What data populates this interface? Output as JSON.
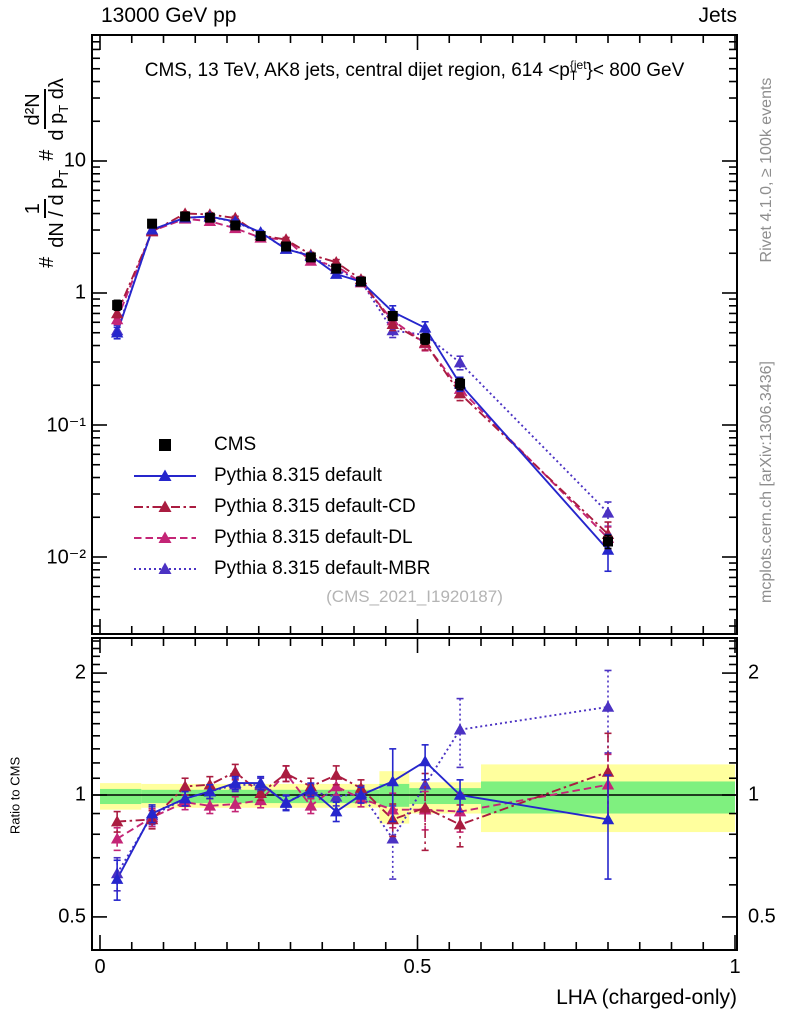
{
  "header": {
    "left": "13000 GeV pp",
    "right": "Jets"
  },
  "panel_title": {
    "prefix": "CMS, 13 TeV, AK8 jets, central dijet region, 614 <p",
    "sup": "{jet",
    "sub": "T",
    "suffix": "}< 800 GeV"
  },
  "watermark": "(CMS_2021_I1920187)",
  "side_text_top": "Rivet 4.1.0, ≥ 100k events",
  "side_text_bottom": "mcplots.cern.ch [arXiv:1306.3436]",
  "chart_data": {
    "type": "line",
    "x_axis": {
      "label": "LHA (charged-only)",
      "lim": [
        -0.0126,
        1.0031
      ],
      "major_ticks": [
        0,
        0.5,
        1
      ],
      "major_tick_labels": [
        "0",
        "0.5",
        "1"
      ],
      "minor_tick_step": 0.05
    },
    "y_axis_main": {
      "scale": "log",
      "lim": [
        0.0027,
        88
      ],
      "major_ticks": [
        0.01,
        0.1,
        1,
        10
      ],
      "major_tick_labels": [
        "10⁻²",
        "10⁻¹",
        "1",
        "10"
      ],
      "label_parts": {
        "hash1": "#",
        "frac1_num": "1",
        "frac1_den": "dN / d p",
        "frac1_den_sub": "T",
        "hash2": "#",
        "frac2_num": "d²N",
        "frac2_den": "d p",
        "frac2_den_sub": "T",
        "frac2_den_tail": " dλ"
      }
    },
    "y_axis_ratio": {
      "scale": "log",
      "lim": [
        0.42,
        2.43
      ],
      "major_ticks": [
        0.5,
        1,
        2
      ],
      "major_tick_labels": [
        "0.5",
        "1",
        "2"
      ],
      "label": "Ratio to CMS"
    },
    "x_values": [
      0.027,
      0.082,
      0.134,
      0.173,
      0.213,
      0.253,
      0.293,
      0.332,
      0.372,
      0.411,
      0.461,
      0.512,
      0.567,
      0.8
    ],
    "ratio_reference": 1,
    "series": [
      {
        "name": "cms",
        "label": "CMS",
        "color": "#000000",
        "marker": "square",
        "line_style": "none",
        "y": [
          0.81,
          3.35,
          3.8,
          3.72,
          3.25,
          2.7,
          2.25,
          1.86,
          1.53,
          1.22,
          0.67,
          0.45,
          0.205,
          0.0131
        ],
        "y_err": [
          0.07,
          0.12,
          0.12,
          0.12,
          0.11,
          0.09,
          0.08,
          0.07,
          0.06,
          0.05,
          0.05,
          0.04,
          0.02,
          0.0015
        ],
        "ratio": null,
        "ratio_err": null
      },
      {
        "name": "pythia-default",
        "label": "Pythia 8.315 default",
        "color": "#2626cc",
        "marker": "triangle",
        "line_style": "solid",
        "y": [
          0.5,
          3.02,
          3.72,
          3.79,
          3.48,
          2.88,
          2.15,
          1.91,
          1.39,
          1.22,
          0.72,
          0.545,
          0.205,
          0.0113
        ],
        "y_err": [
          0.05,
          0.12,
          0.12,
          0.12,
          0.11,
          0.09,
          0.08,
          0.07,
          0.07,
          0.06,
          0.08,
          0.06,
          0.025,
          0.0035
        ],
        "ratio": [
          0.62,
          0.9,
          0.98,
          1.02,
          1.07,
          1.07,
          0.955,
          1.03,
          0.91,
          1.0,
          1.08,
          1.21,
          1.0,
          0.87
        ],
        "ratio_err": [
          0.07,
          0.045,
          0.04,
          0.04,
          0.04,
          0.04,
          0.04,
          0.04,
          0.05,
          0.045,
          0.22,
          0.12,
          0.09,
          0.25
        ]
      },
      {
        "name": "pythia-default-cd",
        "label": "Pythia 8.315 default-CD",
        "color": "#aa1c40",
        "marker": "triangle",
        "line_style": "dashdot",
        "y": [
          0.7,
          2.92,
          4.0,
          3.94,
          3.7,
          2.73,
          2.54,
          1.95,
          1.71,
          1.27,
          0.58,
          0.42,
          0.173,
          0.0149
        ],
        "y_err": [
          0.05,
          0.11,
          0.12,
          0.12,
          0.11,
          0.09,
          0.09,
          0.08,
          0.08,
          0.06,
          0.06,
          0.05,
          0.02,
          0.0035
        ],
        "ratio": [
          0.86,
          0.87,
          1.05,
          1.06,
          1.14,
          1.01,
          1.13,
          1.05,
          1.12,
          1.04,
          0.87,
          0.93,
          0.845,
          1.14
        ],
        "ratio_err": [
          0.05,
          0.045,
          0.05,
          0.05,
          0.05,
          0.04,
          0.05,
          0.05,
          0.06,
          0.05,
          0.08,
          0.2,
          0.1,
          0.28
        ]
      },
      {
        "name": "pythia-default-dl",
        "label": "Pythia 8.315 default-DL",
        "color": "#c42576",
        "marker": "triangle",
        "line_style": "dashed",
        "y": [
          0.63,
          2.95,
          3.65,
          3.5,
          3.09,
          2.62,
          2.54,
          1.75,
          1.61,
          1.2,
          0.62,
          0.415,
          0.187,
          0.0139
        ],
        "y_err": [
          0.05,
          0.11,
          0.12,
          0.12,
          0.1,
          0.09,
          0.09,
          0.07,
          0.07,
          0.06,
          0.06,
          0.05,
          0.02,
          0.003
        ],
        "ratio": [
          0.78,
          0.88,
          0.96,
          0.94,
          0.95,
          0.97,
          1.13,
          0.94,
          1.05,
          0.98,
          0.92,
          0.92,
          0.91,
          1.06
        ],
        "ratio_err": [
          0.05,
          0.045,
          0.04,
          0.04,
          0.04,
          0.04,
          0.05,
          0.04,
          0.05,
          0.045,
          0.09,
          0.1,
          0.1,
          0.2
        ]
      },
      {
        "name": "pythia-default-mbr",
        "label": "Pythia 8.315 default-MBR",
        "color": "#4b32c3",
        "marker": "triangle",
        "line_style": "dotted",
        "y": [
          0.52,
          2.98,
          3.72,
          3.78,
          3.45,
          2.86,
          2.16,
          1.9,
          1.51,
          1.23,
          0.52,
          0.48,
          0.297,
          0.0216
        ],
        "y_err": [
          0.05,
          0.11,
          0.12,
          0.12,
          0.11,
          0.09,
          0.08,
          0.07,
          0.07,
          0.06,
          0.06,
          0.05,
          0.035,
          0.0045
        ],
        "ratio": [
          0.64,
          0.89,
          0.98,
          1.02,
          1.06,
          1.06,
          0.96,
          1.02,
          0.99,
          1.01,
          0.78,
          1.06,
          1.45,
          1.65
        ],
        "ratio_err": [
          0.06,
          0.045,
          0.04,
          0.04,
          0.04,
          0.04,
          0.04,
          0.04,
          0.05,
          0.045,
          0.16,
          0.13,
          0.28,
          0.38
        ]
      }
    ],
    "uncertainty_bands": {
      "yellow_color": "#ffff9e",
      "green_color": "#7ff07f",
      "segments": [
        {
          "x": [
            0.0,
            0.065
          ],
          "yellow": [
            0.92,
            1.07
          ],
          "green": [
            0.95,
            1.035
          ]
        },
        {
          "x": [
            0.065,
            0.44
          ],
          "yellow": [
            0.93,
            1.065
          ],
          "green": [
            0.955,
            1.03
          ]
        },
        {
          "x": [
            0.44,
            0.487
          ],
          "yellow": [
            0.85,
            1.145
          ],
          "green": [
            0.935,
            1.065
          ]
        },
        {
          "x": [
            0.487,
            0.6
          ],
          "yellow": [
            0.9,
            1.075
          ],
          "green": [
            0.95,
            1.04
          ]
        },
        {
          "x": [
            0.6,
            1.0
          ],
          "yellow": [
            0.81,
            1.19
          ],
          "green": [
            0.9,
            1.08
          ]
        }
      ]
    }
  }
}
